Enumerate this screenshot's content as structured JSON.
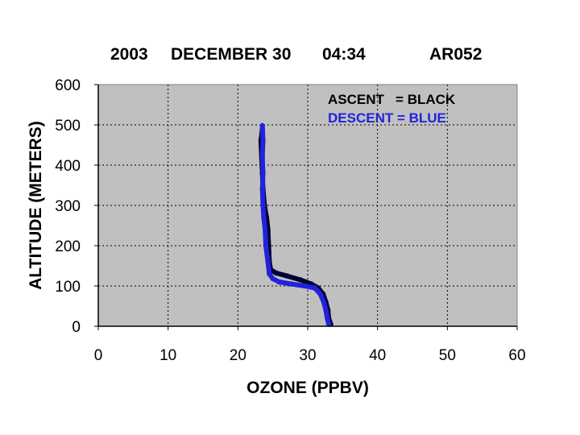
{
  "chart_data": {
    "type": "line",
    "title_parts": [
      "2003",
      "DECEMBER 30",
      "04:34",
      "AR052"
    ],
    "xlabel": "OZONE (PPBV)",
    "ylabel": "ALTITUDE (METERS)",
    "xlim": [
      0,
      60
    ],
    "ylim": [
      0,
      600
    ],
    "x_ticks": [
      "0",
      "10",
      "20",
      "30",
      "40",
      "50",
      "60"
    ],
    "y_ticks": [
      "0",
      "100",
      "200",
      "300",
      "400",
      "500",
      "600"
    ],
    "grid": true,
    "plot_background": "#c0c0c0",
    "legend": {
      "placement": "top-right",
      "ascent_label": "ASCENT   = BLACK",
      "descent_label": "DESCENT = BLUE"
    },
    "series": [
      {
        "color": "#000033",
        "points": [
          [
            33.3,
            5
          ],
          [
            33.0,
            20
          ],
          [
            32.9,
            40
          ],
          [
            32.6,
            60
          ],
          [
            32.2,
            80
          ],
          [
            31.5,
            95
          ],
          [
            30.5,
            105
          ],
          [
            29.0,
            115
          ],
          [
            27.0,
            125
          ],
          [
            25.5,
            132
          ],
          [
            24.7,
            140
          ],
          [
            24.5,
            160
          ],
          [
            24.4,
            200
          ],
          [
            24.3,
            240
          ],
          [
            24.1,
            270
          ],
          [
            23.8,
            300
          ],
          [
            23.6,
            340
          ],
          [
            23.5,
            380
          ],
          [
            23.4,
            420
          ],
          [
            23.3,
            460
          ],
          [
            23.5,
            490
          ]
        ]
      },
      {
        "color": "#2222dd",
        "points": [
          [
            33.0,
            5
          ],
          [
            32.8,
            20
          ],
          [
            32.6,
            40
          ],
          [
            32.3,
            60
          ],
          [
            31.8,
            80
          ],
          [
            31.0,
            95
          ],
          [
            29.6,
            100
          ],
          [
            27.6,
            105
          ],
          [
            25.9,
            110
          ],
          [
            25.0,
            118
          ],
          [
            24.5,
            130
          ],
          [
            24.3,
            160
          ],
          [
            24.0,
            200
          ],
          [
            23.9,
            240
          ],
          [
            23.7,
            270
          ],
          [
            23.6,
            300
          ],
          [
            23.5,
            340
          ],
          [
            23.6,
            380
          ],
          [
            23.5,
            420
          ],
          [
            23.6,
            460
          ],
          [
            23.5,
            498
          ]
        ]
      }
    ]
  }
}
